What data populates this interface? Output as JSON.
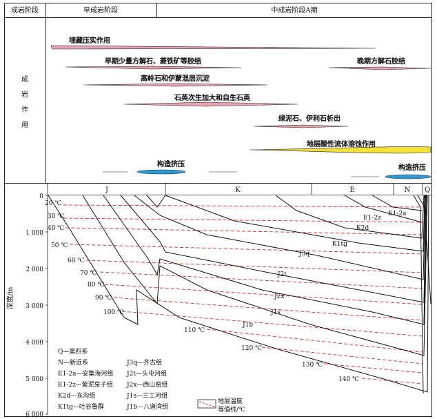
{
  "header": {
    "col_stage": "成岩阶段",
    "early": "早成岩阶段",
    "middle": "中成岩阶段A期"
  },
  "left_label": [
    "成",
    "岩",
    "作",
    "用"
  ],
  "processes": [
    {
      "label": "埋藏压实作用",
      "color": "#e8a3b1"
    },
    {
      "label": "早期少量方解石、菱铁矿等胶结",
      "color": "#e8a3b1"
    },
    {
      "label": "晚期方解石胶结",
      "color": "#e8a3b1"
    },
    {
      "label": "高岭石和伊蒙混层沉淀",
      "color": "#e8a3b1"
    },
    {
      "label": "石英次生加大和自生石英",
      "color": "#e8a3b1"
    },
    {
      "label": "绿泥石、伊利石析出",
      "color": "#e8a3b1"
    },
    {
      "label": "地层酸性流体溶蚀作用",
      "color": "#f4e23a"
    },
    {
      "label": "构造挤压",
      "color": "#2e9ad6"
    },
    {
      "label": "构造挤压",
      "color": "#2e9ad6"
    }
  ],
  "periods": [
    "J",
    "K",
    "E",
    "N",
    "Q"
  ],
  "depth_axis": {
    "label": "深度/m",
    "ticks": [
      "0",
      "1 000",
      "2 000",
      "3 000",
      "4 000",
      "5 000",
      "6 000"
    ]
  },
  "isotherms": [
    "20 ℃",
    "30 ℃",
    "40 ℃",
    "50 ℃",
    "60 ℃",
    "70 ℃",
    "80 ℃",
    "90 ℃",
    "100 ℃",
    "110 ℃",
    "120 ℃",
    "130 ℃",
    "140 ℃"
  ],
  "formations": [
    "E1-2a",
    "E1-2z",
    "K2d",
    "K1tg",
    "J3q",
    "J2t",
    "J2x",
    "J1s",
    "J1b"
  ],
  "legend": {
    "col1": [
      "Q—第四系",
      "N—新近系",
      "E1-2a—安集海河组",
      "E1-2z—紫泥泉子组",
      "K2d—东沟组",
      "K1tg—吐谷鲁群"
    ],
    "col2": [
      "J3q—齐古组",
      "J2t—头屯河组",
      "J2x—西山窑组",
      "J1s—三工河组",
      "J1b—八道湾组"
    ],
    "isotherm_label": [
      "地层温度",
      "等值线/℃"
    ]
  },
  "colors": {
    "isotherm": "#d6262b",
    "pink": "#e8a3b1",
    "yellow": "#f4e23a",
    "blue": "#2e9ad6"
  }
}
